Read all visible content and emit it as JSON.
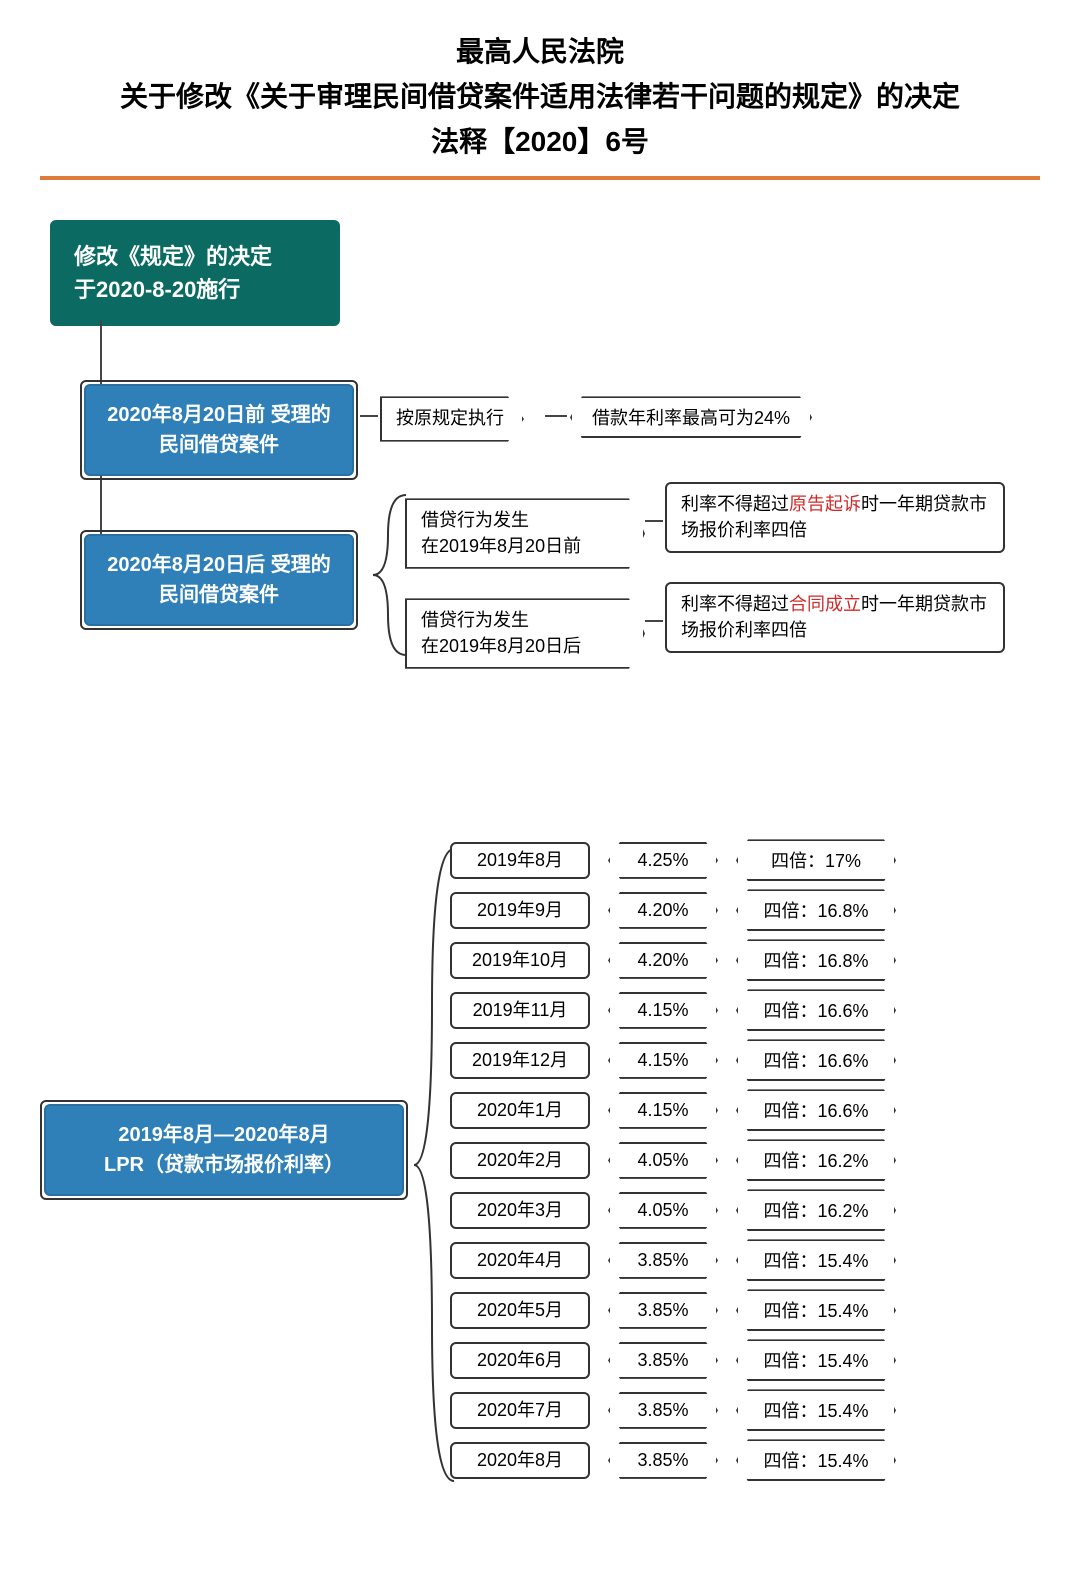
{
  "header": {
    "line1": "最高人民法院",
    "line2": "关于修改《关于审理民间借贷案件适用法律若干问题的规定》的决定",
    "line3": "法释【2020】6号"
  },
  "colors": {
    "accent_hr": "#e07b3c",
    "teal": "#0b6b62",
    "blue": "#2f7fb8",
    "border": "#333333",
    "highlight_red": "#d02a2a",
    "bg": "#ffffff"
  },
  "flow": {
    "root": "修改《规定》的决定\n于2020-8-20施行",
    "before": {
      "title": "2020年8月20日前\n受理的民间借贷案件",
      "rule": "按原规定执行",
      "result": "借款年利率最高可为24%"
    },
    "after": {
      "title": "2020年8月20日后\n受理的民间借贷案件",
      "branch1": {
        "cond": "借贷行为发生\n在2019年8月20日前",
        "result_pre": "利率不得超过",
        "result_red": "原告起诉",
        "result_post": "时一年期贷款市场报价利率四倍"
      },
      "branch2": {
        "cond": "借贷行为发生\n在2019年8月20日后",
        "result_pre": "利率不得超过",
        "result_red": "合同成立",
        "result_post": "时一年期贷款市场报价利率四倍"
      }
    }
  },
  "lpr": {
    "title": "2019年8月—2020年8月\nLPR（贷款市场报价利率）",
    "quad_label": "四倍：",
    "rows": [
      {
        "month": "2019年8月",
        "rate": "4.25%",
        "quad": "17%"
      },
      {
        "month": "2019年9月",
        "rate": "4.20%",
        "quad": "16.8%"
      },
      {
        "month": "2019年10月",
        "rate": "4.20%",
        "quad": "16.8%"
      },
      {
        "month": "2019年11月",
        "rate": "4.15%",
        "quad": "16.6%"
      },
      {
        "month": "2019年12月",
        "rate": "4.15%",
        "quad": "16.6%"
      },
      {
        "month": "2020年1月",
        "rate": "4.15%",
        "quad": "16.6%"
      },
      {
        "month": "2020年2月",
        "rate": "4.05%",
        "quad": "16.2%"
      },
      {
        "month": "2020年3月",
        "rate": "4.05%",
        "quad": "16.2%"
      },
      {
        "month": "2020年4月",
        "rate": "3.85%",
        "quad": "15.4%"
      },
      {
        "month": "2020年5月",
        "rate": "3.85%",
        "quad": "15.4%"
      },
      {
        "month": "2020年6月",
        "rate": "3.85%",
        "quad": "15.4%"
      },
      {
        "month": "2020年7月",
        "rate": "3.85%",
        "quad": "15.4%"
      },
      {
        "month": "2020年8月",
        "rate": "3.85%",
        "quad": "15.4%"
      }
    ]
  },
  "style": {
    "title_fontsize": 28,
    "node_fontsize": 22,
    "subnode_fontsize": 20,
    "box_fontsize": 18,
    "border_radius": 6,
    "border_width": 2
  }
}
